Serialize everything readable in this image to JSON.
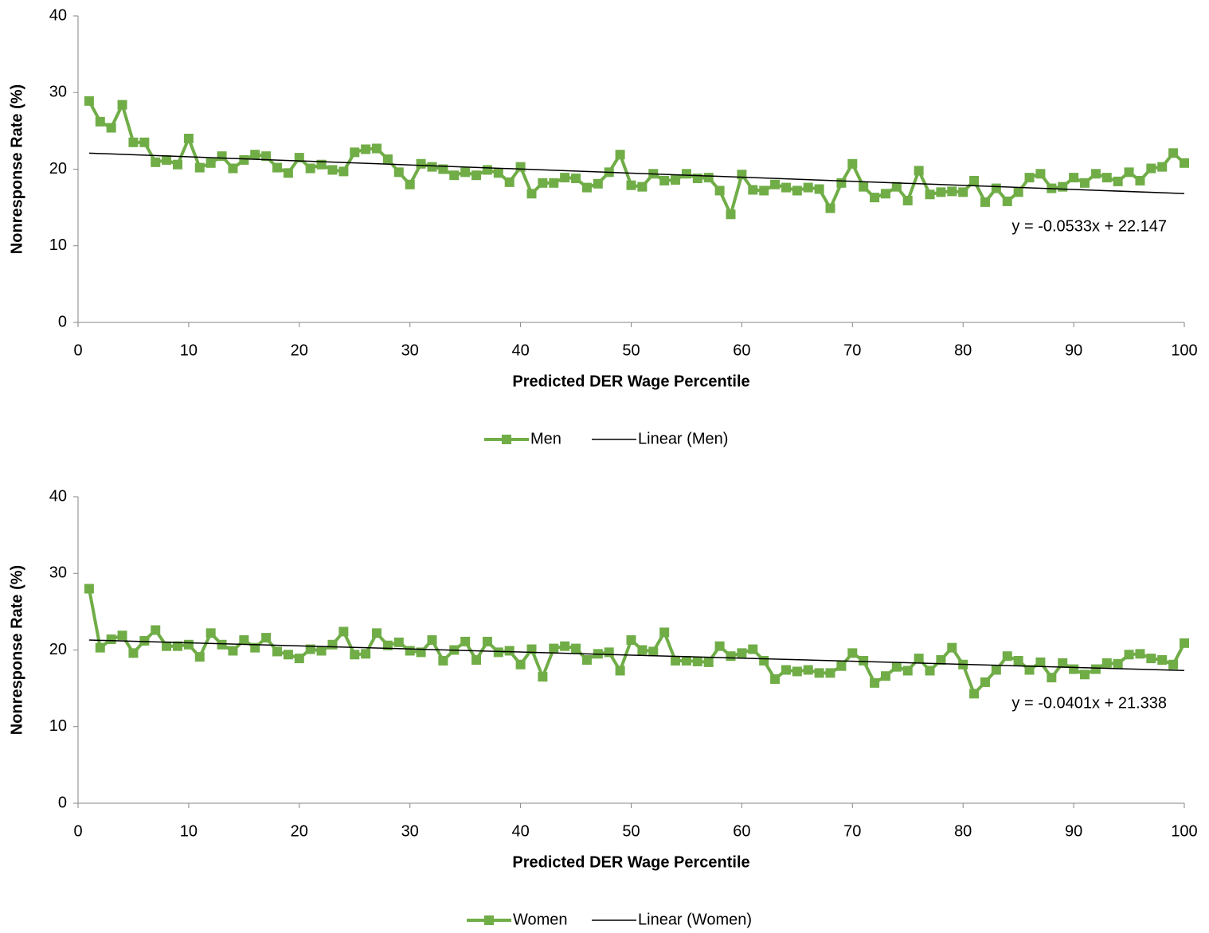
{
  "chart_data": [
    {
      "type": "line",
      "x_label": "Predicted DER Wage Percentile",
      "y_label": "Nonresponse Rate (%)",
      "x": [
        1,
        2,
        3,
        4,
        5,
        6,
        7,
        8,
        9,
        10,
        11,
        12,
        13,
        14,
        15,
        16,
        17,
        18,
        19,
        20,
        21,
        22,
        23,
        24,
        25,
        26,
        27,
        28,
        29,
        30,
        31,
        32,
        33,
        34,
        35,
        36,
        37,
        38,
        39,
        40,
        41,
        42,
        43,
        44,
        45,
        46,
        47,
        48,
        49,
        50,
        51,
        52,
        53,
        54,
        55,
        56,
        57,
        58,
        59,
        60,
        61,
        62,
        63,
        64,
        65,
        66,
        67,
        68,
        69,
        70,
        71,
        72,
        73,
        74,
        75,
        76,
        77,
        78,
        79,
        80,
        81,
        82,
        83,
        84,
        85,
        86,
        87,
        88,
        89,
        90,
        91,
        92,
        93,
        94,
        95,
        96,
        97,
        98,
        99,
        100
      ],
      "series": [
        {
          "name": "Men",
          "color": "#70ad47",
          "values": [
            28.9,
            26.2,
            25.4,
            28.4,
            23.5,
            23.5,
            20.9,
            21.2,
            20.6,
            24.0,
            20.2,
            20.8,
            21.7,
            20.1,
            21.2,
            21.9,
            21.7,
            20.2,
            19.5,
            21.5,
            20.1,
            20.6,
            19.9,
            19.7,
            22.2,
            22.6,
            22.7,
            21.3,
            19.6,
            18.0,
            20.7,
            20.3,
            20.0,
            19.2,
            19.6,
            19.2,
            19.9,
            19.5,
            18.3,
            20.3,
            16.8,
            18.2,
            18.2,
            18.9,
            18.8,
            17.6,
            18.1,
            19.6,
            21.9,
            17.9,
            17.7,
            19.4,
            18.5,
            18.6,
            19.4,
            18.8,
            18.9,
            17.2,
            14.1,
            19.3,
            17.3,
            17.2,
            18.0,
            17.6,
            17.2,
            17.6,
            17.4,
            14.9,
            18.2,
            20.7,
            17.7,
            16.3,
            16.8,
            17.7,
            15.9,
            19.8,
            16.7,
            17.0,
            17.1,
            17.0,
            18.5,
            15.7,
            17.5,
            15.8,
            17.0,
            18.9,
            19.4,
            17.5,
            17.7,
            18.9,
            18.2,
            19.4,
            18.9,
            18.4,
            19.6,
            18.5,
            20.1,
            20.3,
            22.1,
            20.8
          ]
        },
        {
          "name": "Linear (Men)",
          "color": "#000000",
          "trend": {
            "slope": -0.0533,
            "intercept": 22.147,
            "label": "y = -0.0533x + 22.147"
          }
        }
      ],
      "xlim": [
        0,
        100
      ],
      "xticks": [
        0,
        10,
        20,
        30,
        40,
        50,
        60,
        70,
        80,
        90,
        100
      ],
      "ylim": [
        0,
        40
      ],
      "yticks": [
        0,
        10,
        20,
        30,
        40
      ]
    },
    {
      "type": "line",
      "x_label": "Predicted DER Wage Percentile",
      "y_label": "Nonresponse Rate (%)",
      "x": [
        1,
        2,
        3,
        4,
        5,
        6,
        7,
        8,
        9,
        10,
        11,
        12,
        13,
        14,
        15,
        16,
        17,
        18,
        19,
        20,
        21,
        22,
        23,
        24,
        25,
        26,
        27,
        28,
        29,
        30,
        31,
        32,
        33,
        34,
        35,
        36,
        37,
        38,
        39,
        40,
        41,
        42,
        43,
        44,
        45,
        46,
        47,
        48,
        49,
        50,
        51,
        52,
        53,
        54,
        55,
        56,
        57,
        58,
        59,
        60,
        61,
        62,
        63,
        64,
        65,
        66,
        67,
        68,
        69,
        70,
        71,
        72,
        73,
        74,
        75,
        76,
        77,
        78,
        79,
        80,
        81,
        82,
        83,
        84,
        85,
        86,
        87,
        88,
        89,
        90,
        91,
        92,
        93,
        94,
        95,
        96,
        97,
        98,
        99,
        100
      ],
      "series": [
        {
          "name": "Women",
          "color": "#70ad47",
          "values": [
            28.0,
            20.3,
            21.4,
            21.9,
            19.6,
            21.2,
            22.6,
            20.5,
            20.5,
            20.7,
            19.1,
            22.2,
            20.7,
            19.9,
            21.3,
            20.3,
            21.6,
            19.8,
            19.4,
            18.9,
            20.1,
            19.9,
            20.7,
            22.4,
            19.4,
            19.5,
            22.2,
            20.6,
            21.0,
            19.9,
            19.7,
            21.3,
            18.6,
            20.0,
            21.1,
            18.7,
            21.1,
            19.7,
            19.9,
            18.1,
            20.1,
            16.5,
            20.2,
            20.5,
            20.2,
            18.7,
            19.5,
            19.7,
            17.3,
            21.3,
            20.0,
            19.8,
            22.3,
            18.6,
            18.6,
            18.5,
            18.4,
            20.5,
            19.2,
            19.6,
            20.1,
            18.6,
            16.2,
            17.4,
            17.2,
            17.4,
            17.0,
            17.0,
            17.9,
            19.6,
            18.6,
            15.7,
            16.6,
            17.8,
            17.3,
            18.9,
            17.3,
            18.7,
            20.3,
            18.1,
            14.3,
            15.8,
            17.4,
            19.2,
            18.6,
            17.4,
            18.4,
            16.4,
            18.3,
            17.5,
            16.8,
            17.5,
            18.3,
            18.2,
            19.4,
            19.5,
            18.9,
            18.7,
            18.1,
            20.9
          ]
        },
        {
          "name": "Linear (Women)",
          "color": "#000000",
          "trend": {
            "slope": -0.0401,
            "intercept": 21.338,
            "label": "y = -0.0401x + 21.338"
          }
        }
      ],
      "xlim": [
        0,
        100
      ],
      "xticks": [
        0,
        10,
        20,
        30,
        40,
        50,
        60,
        70,
        80,
        90,
        100
      ],
      "ylim": [
        0,
        40
      ],
      "yticks": [
        0,
        10,
        20,
        30,
        40
      ]
    }
  ]
}
